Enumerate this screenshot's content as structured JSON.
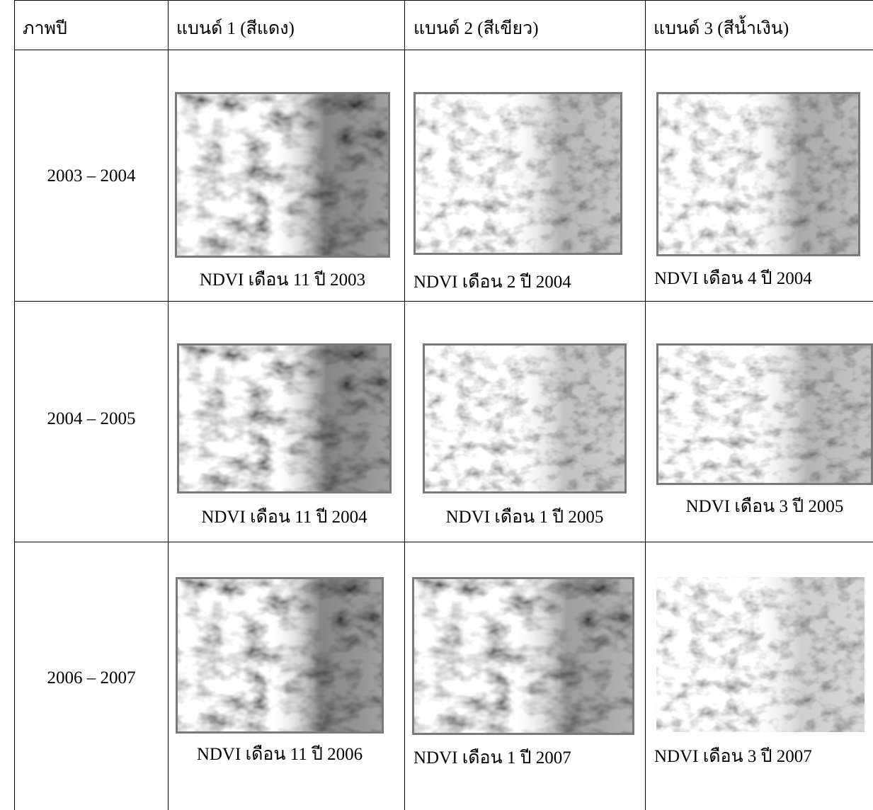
{
  "table": {
    "header": [
      "ภาพปี",
      "แบนด์ 1 (สีแดง)",
      "แบนด์ 2 (สีเขียว)",
      "แบนด์ 3 (สีน้ำเงิน)"
    ],
    "rows": [
      {
        "year": "2003 – 2004",
        "captions": [
          "NDVI เดือน 11 ปี 2003",
          "NDVI เดือน 2 ปี 2004",
          "NDVI เดือน 4 ปี 2004"
        ]
      },
      {
        "year": "2004 – 2005",
        "captions": [
          "NDVI เดือน 11 ปี 2004",
          "NDVI เดือน 1 ปี 2005",
          "NDVI เดือน 3 ปี 2005"
        ]
      },
      {
        "year": "2006 – 2007",
        "captions": [
          "NDVI เดือน 11 ปี 2006",
          "NDVI เดือน 1 ปี 2007",
          "NDVI เดือน 3 ปี 2007"
        ]
      }
    ]
  }
}
